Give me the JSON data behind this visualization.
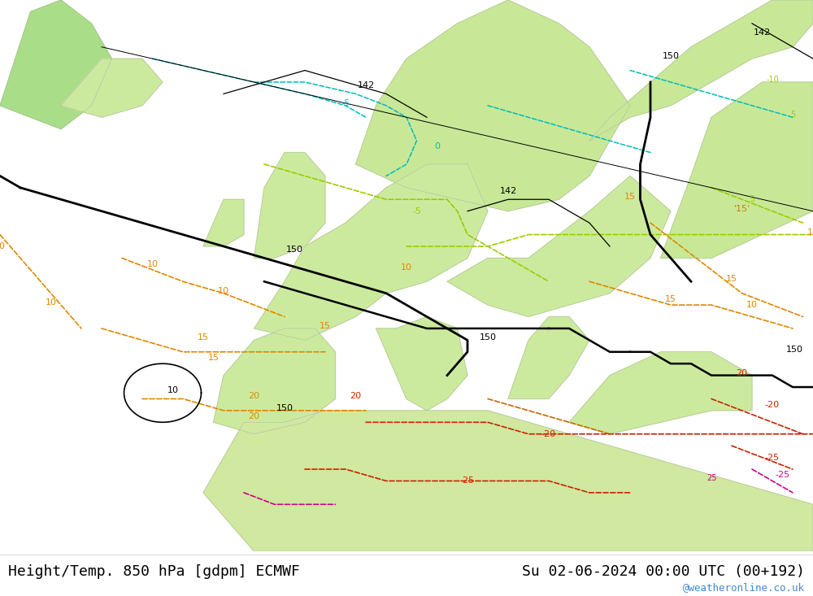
{
  "title_left": "Height/Temp. 850 hPa [gdpm] ECMWF",
  "title_right": "Su 02-06-2024 00:00 UTC (00+192)",
  "watermark": "@weatheronline.co.uk",
  "fig_width": 10.0,
  "fig_height": 7.33,
  "dpi": 100,
  "title_fontsize": 13,
  "watermark_color": "#4488cc",
  "map_extent": [
    -30,
    50,
    25,
    72
  ]
}
